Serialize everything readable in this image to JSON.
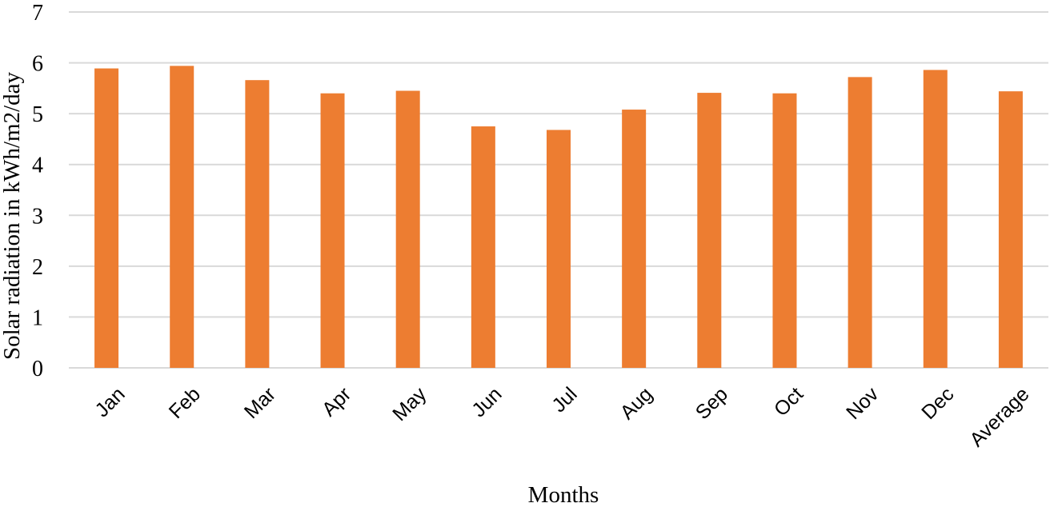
{
  "chart_data": {
    "type": "bar",
    "categories": [
      "Jan",
      "Feb",
      "Mar",
      "Apr",
      "May",
      "Jun",
      "Jul",
      "Aug",
      "Sep",
      "Oct",
      "Nov",
      "Dec",
      "Average"
    ],
    "values": [
      5.89,
      5.94,
      5.66,
      5.4,
      5.45,
      4.75,
      4.68,
      5.08,
      5.41,
      5.4,
      5.72,
      5.86,
      5.44
    ],
    "xlabel": "Months",
    "ylabel": "Solar radiation in kWh/m2/day",
    "ylim": [
      0,
      7
    ],
    "yticks": [
      0,
      1,
      2,
      3,
      4,
      5,
      6,
      7
    ],
    "grid": true,
    "legend": "none",
    "bar_color": "#ED7D31"
  }
}
